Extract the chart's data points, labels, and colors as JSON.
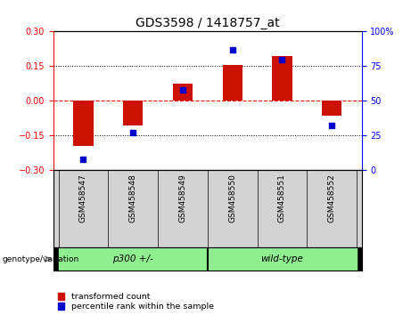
{
  "title": "GDS3598 / 1418757_at",
  "samples": [
    "GSM458547",
    "GSM458548",
    "GSM458549",
    "GSM458550",
    "GSM458551",
    "GSM458552"
  ],
  "transformed_counts": [
    -0.195,
    -0.105,
    0.075,
    0.155,
    0.195,
    -0.065
  ],
  "percentile_ranks": [
    8,
    27,
    58,
    87,
    80,
    32
  ],
  "groups": [
    "p300 +/-",
    "p300 +/-",
    "p300 +/-",
    "wild-type",
    "wild-type",
    "wild-type"
  ],
  "bar_color": "#CC1100",
  "dot_color": "#0000CC",
  "ylim_left": [
    -0.3,
    0.3
  ],
  "ylim_right": [
    0,
    100
  ],
  "yticks_left": [
    -0.3,
    -0.15,
    0,
    0.15,
    0.3
  ],
  "yticks_right": [
    0,
    25,
    50,
    75,
    100
  ],
  "hlines": [
    -0.15,
    0,
    0.15
  ],
  "hline_styles": [
    "dotted",
    "dashed_red",
    "dotted"
  ],
  "bg_color": "#d3d3d3",
  "plot_bg": "#ffffff",
  "tick_fontsize": 7,
  "title_fontsize": 10,
  "legend_items": [
    "transformed count",
    "percentile rank within the sample"
  ],
  "light_green": "#90EE90",
  "darker_green": "#4CBB47"
}
